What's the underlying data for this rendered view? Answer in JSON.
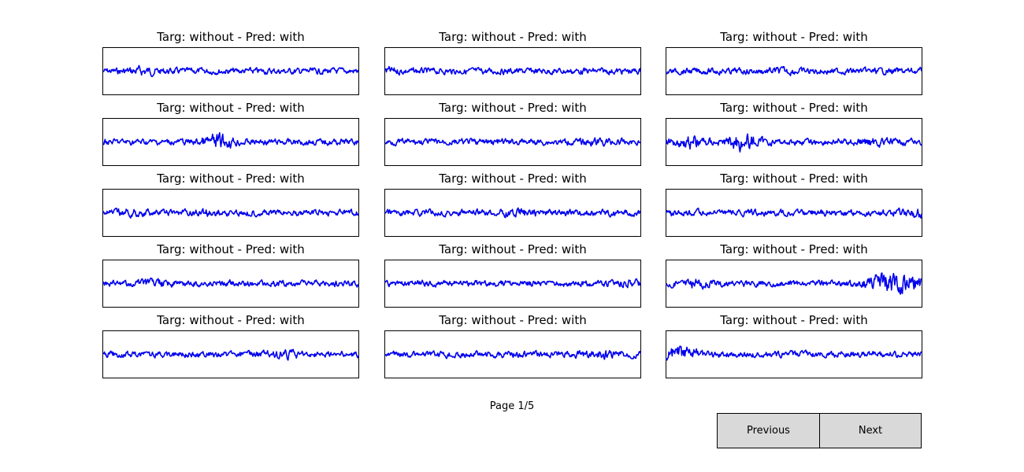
{
  "colors": {
    "signal": "#0000ee",
    "background": "#ffffff",
    "button_face": "#d9d9d9",
    "frame": "#000000"
  },
  "panels": [
    {
      "title": "Targ: without - Pred: with"
    },
    {
      "title": "Targ: without - Pred: with"
    },
    {
      "title": "Targ: without - Pred: with"
    },
    {
      "title": "Targ: without - Pred: with"
    },
    {
      "title": "Targ: without - Pred: with"
    },
    {
      "title": "Targ: without - Pred: with"
    },
    {
      "title": "Targ: without - Pred: with"
    },
    {
      "title": "Targ: without - Pred: with"
    },
    {
      "title": "Targ: without - Pred: with"
    },
    {
      "title": "Targ: without - Pred: with"
    },
    {
      "title": "Targ: without - Pred: with"
    },
    {
      "title": "Targ: without - Pred: with"
    },
    {
      "title": "Targ: without - Pred: with"
    },
    {
      "title": "Targ: without - Pred: with"
    },
    {
      "title": "Targ: without - Pred: with"
    }
  ],
  "pagination": {
    "label": "Page 1/5",
    "current_page": 1,
    "total_pages": 5
  },
  "buttons": {
    "previous": "Previous",
    "next": "Next"
  }
}
